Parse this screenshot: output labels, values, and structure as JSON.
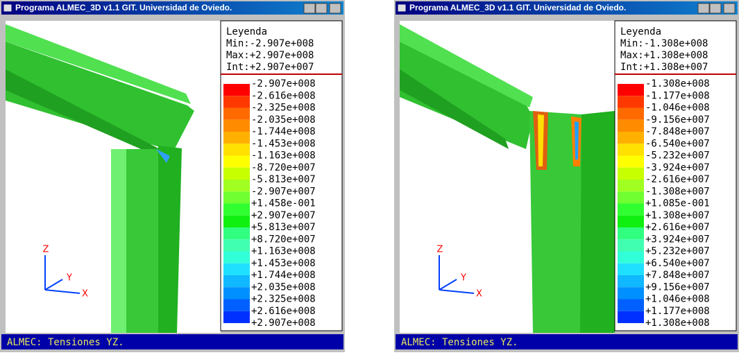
{
  "windows": [
    {
      "title": "Programa ALMEC_3D v1.1 GIT. Universidad de Oviedo.",
      "legend": {
        "heading": "Leyenda",
        "min": "Min:-2.907e+008",
        "max": "Max:+2.907e+008",
        "int": "Int:+2.907e+007",
        "labels": [
          "-2.907e+008",
          "-2.616e+008",
          "-2.325e+008",
          "-2.035e+008",
          "-1.744e+008",
          "-1.453e+008",
          "-1.163e+008",
          "-8.720e+007",
          "-5.813e+007",
          "-2.907e+007",
          "+1.458e-001",
          "+2.907e+007",
          "+5.813e+007",
          "+8.720e+007",
          "+1.163e+008",
          "+1.453e+008",
          "+1.744e+008",
          "+2.035e+008",
          "+2.325e+008",
          "+2.616e+008",
          "+2.907e+008"
        ],
        "colors": [
          "#ff0000",
          "#ff3800",
          "#ff6a00",
          "#ff8c00",
          "#ffb000",
          "#ffe000",
          "#ffff00",
          "#c8ff00",
          "#a0ff20",
          "#70ff30",
          "#30ff30",
          "#10f010",
          "#30ff80",
          "#40ffb0",
          "#30ffd8",
          "#20e0ff",
          "#10b8ff",
          "#0090ff",
          "#0060ff",
          "#0030ff"
        ]
      },
      "axes": {
        "z": "Z",
        "y": "Y",
        "x": "X"
      },
      "status": "ALMEC: Tensiones YZ."
    },
    {
      "title": "Programa ALMEC_3D v1.1 GIT. Universidad de Oviedo.",
      "legend": {
        "heading": "Leyenda",
        "min": "Min:-1.308e+008",
        "max": "Max:+1.308e+008",
        "int": "Int:+1.308e+007",
        "labels": [
          "-1.308e+008",
          "-1.177e+008",
          "-1.046e+008",
          "-9.156e+007",
          "-7.848e+007",
          "-6.540e+007",
          "-5.232e+007",
          "-3.924e+007",
          "-2.616e+007",
          "-1.308e+007",
          "+1.085e-001",
          "+1.308e+007",
          "+2.616e+007",
          "+3.924e+007",
          "+5.232e+007",
          "+6.540e+007",
          "+7.848e+007",
          "+9.156e+007",
          "+1.046e+008",
          "+1.177e+008",
          "+1.308e+008"
        ],
        "colors": [
          "#ff0000",
          "#ff3800",
          "#ff6a00",
          "#ff8c00",
          "#ffb000",
          "#ffe000",
          "#ffff00",
          "#c8ff00",
          "#a0ff20",
          "#70ff30",
          "#30ff30",
          "#10f010",
          "#30ff80",
          "#40ffb0",
          "#30ffd8",
          "#20e0ff",
          "#10b8ff",
          "#0090ff",
          "#0060ff",
          "#0030ff"
        ]
      },
      "axes": {
        "z": "Z",
        "y": "Y",
        "x": "X"
      },
      "status": "ALMEC: Tensiones YZ."
    }
  ]
}
